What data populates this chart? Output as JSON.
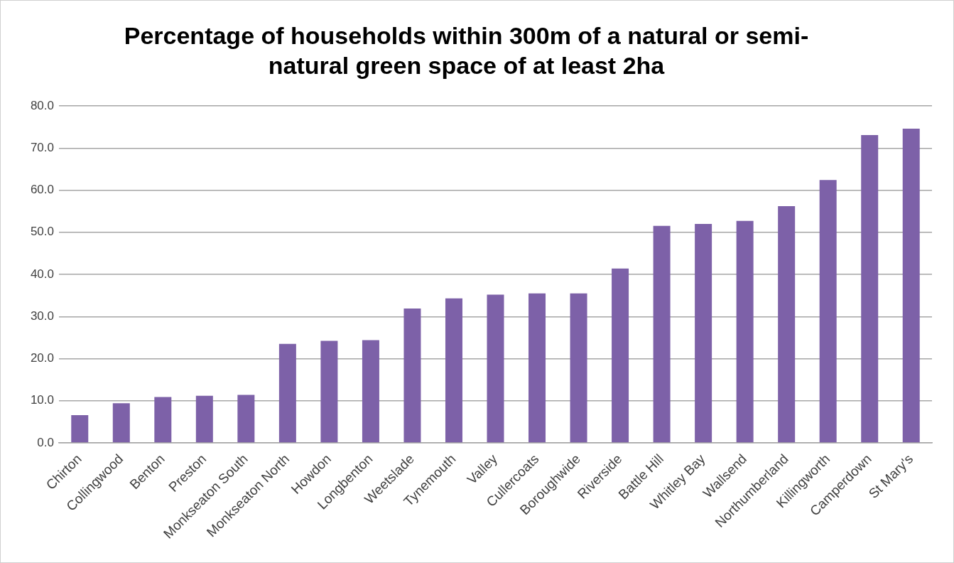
{
  "chart_data": {
    "type": "bar",
    "title": "Percentage of households within 300m of a natural or semi-natural green space of at least 2ha",
    "categories": [
      "Chirton",
      "Collingwood",
      "Benton",
      "Preston",
      "Monkseaton South",
      "Monkseaton North",
      "Howdon",
      "Longbenton",
      "Weetslade",
      "Tynemouth",
      "Valley",
      "Cullercoats",
      "Boroughwide",
      "Riverside",
      "Battle Hill",
      "Whitley Bay",
      "Wallsend",
      "Northumberland",
      "Killingworth",
      "Camperdown",
      "St Mary's"
    ],
    "values": [
      6.6,
      9.4,
      10.9,
      11.2,
      11.4,
      23.5,
      24.2,
      24.4,
      31.9,
      34.3,
      35.2,
      35.5,
      35.5,
      41.4,
      51.5,
      52.0,
      52.7,
      56.2,
      62.4,
      73.1,
      74.6
    ],
    "color": "#7d61a8",
    "ylim": [
      0,
      80
    ],
    "yticks": [
      {
        "value": 0,
        "label": "0.0"
      },
      {
        "value": 10,
        "label": "10.0"
      },
      {
        "value": 20,
        "label": "20.0"
      },
      {
        "value": 30,
        "label": "30.0"
      },
      {
        "value": 40,
        "label": "40.0"
      },
      {
        "value": 50,
        "label": "50.0"
      },
      {
        "value": 60,
        "label": "60.0"
      },
      {
        "value": 70,
        "label": "70.0"
      },
      {
        "value": 80,
        "label": "80.0"
      }
    ],
    "grid": "y"
  }
}
